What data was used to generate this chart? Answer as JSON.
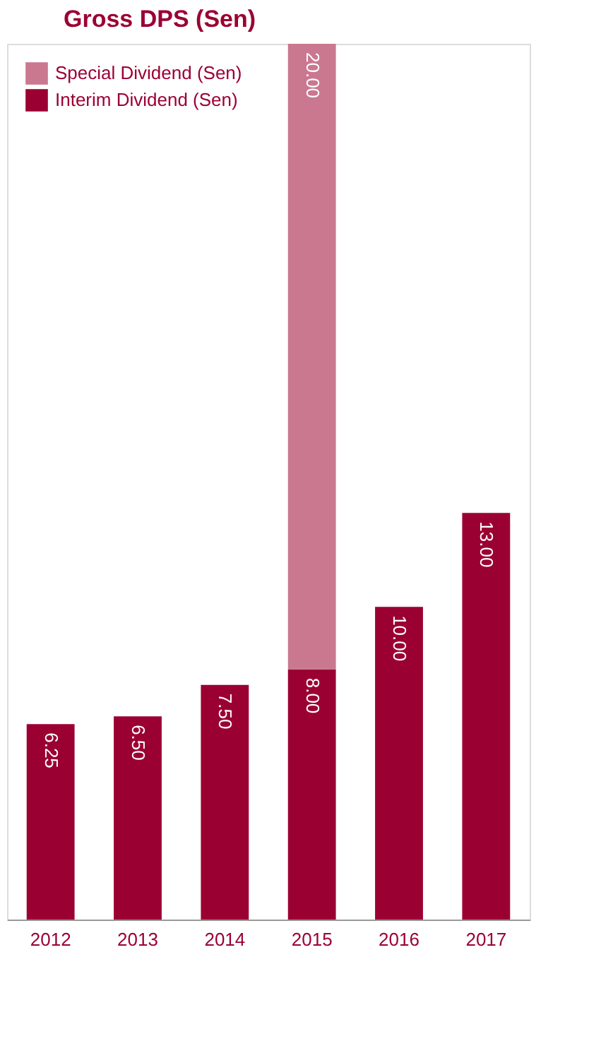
{
  "chart_data": {
    "type": "bar",
    "title": "Gross DPS (Sen)",
    "stacked": true,
    "legend": "top left",
    "grid": false,
    "categories": [
      "2012",
      "2013",
      "2014",
      "2015",
      "2016",
      "2017"
    ],
    "series": [
      {
        "name": "Interim Dividend (Sen)",
        "color": "#9b0033",
        "values": [
          6.25,
          6.5,
          7.5,
          8.0,
          10.0,
          13.0
        ],
        "value_labels": [
          "6.25",
          "6.50",
          "7.50",
          "8.00",
          "10.00",
          "13.00"
        ]
      },
      {
        "name": "Special Dividend (Sen)",
        "color": "#c97890",
        "values": [
          null,
          null,
          null,
          20.0,
          null,
          null
        ],
        "value_labels": [
          null,
          null,
          null,
          "20.00",
          null,
          null
        ]
      }
    ]
  }
}
